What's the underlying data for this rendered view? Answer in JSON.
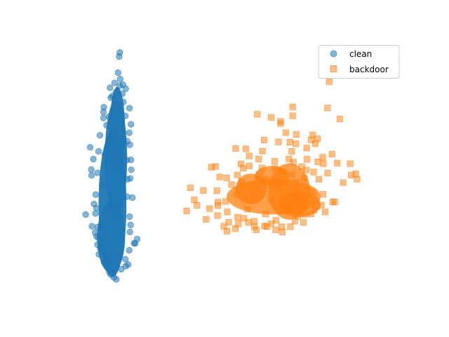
{
  "chart_data": {
    "type": "scatter",
    "title": "",
    "xlabel": "",
    "ylabel": "",
    "axes_visible": false,
    "grid": false,
    "legend": {
      "placement": "top-right"
    },
    "xlim": [
      0,
      1
    ],
    "ylim": [
      0,
      1
    ],
    "series": [
      {
        "name": "clean",
        "marker": "circle",
        "color": "#1f77b4",
        "alpha": 0.55,
        "points": [
          [
            0.183,
            0.954
          ],
          [
            0.181,
            0.938
          ],
          [
            0.178,
            0.875
          ],
          [
            0.184,
            0.85
          ],
          [
            0.168,
            0.835
          ],
          [
            0.192,
            0.828
          ],
          [
            0.155,
            0.816
          ],
          [
            0.2,
            0.812
          ],
          [
            0.172,
            0.799
          ],
          [
            0.19,
            0.792
          ],
          [
            0.162,
            0.784
          ],
          [
            0.211,
            0.736
          ],
          [
            0.137,
            0.74
          ],
          [
            0.136,
            0.698
          ],
          [
            0.215,
            0.673
          ],
          [
            0.21,
            0.64
          ],
          [
            0.212,
            0.593
          ],
          [
            0.098,
            0.583
          ],
          [
            0.122,
            0.567
          ],
          [
            0.107,
            0.537
          ],
          [
            0.101,
            0.496
          ],
          [
            0.119,
            0.483
          ],
          [
            0.102,
            0.473
          ],
          [
            0.203,
            0.533
          ],
          [
            0.213,
            0.461
          ],
          [
            0.204,
            0.39
          ],
          [
            0.085,
            0.32
          ],
          [
            0.103,
            0.274
          ],
          [
            0.112,
            0.25
          ],
          [
            0.116,
            0.234
          ],
          [
            0.227,
            0.207
          ],
          [
            0.233,
            0.224
          ],
          [
            0.224,
            0.208
          ],
          [
            0.119,
            0.202
          ],
          [
            0.123,
            0.164
          ],
          [
            0.14,
            0.148
          ],
          [
            0.138,
            0.133
          ],
          [
            0.2,
            0.118
          ],
          [
            0.207,
            0.124
          ],
          [
            0.187,
            0.106
          ],
          [
            0.157,
            0.085
          ],
          [
            0.16,
            0.098
          ],
          [
            0.166,
            0.074
          ],
          [
            0.173,
            0.066
          ],
          [
            0.153,
            0.095
          ],
          [
            0.145,
            0.128
          ],
          [
            0.199,
            0.145
          ],
          [
            0.21,
            0.18
          ],
          [
            0.127,
            0.187
          ],
          [
            0.109,
            0.361
          ],
          [
            0.113,
            0.324
          ],
          [
            0.214,
            0.279
          ],
          [
            0.211,
            0.312
          ],
          [
            0.114,
            0.398
          ],
          [
            0.216,
            0.495
          ],
          [
            0.215,
            0.534
          ],
          [
            0.136,
            0.721
          ],
          [
            0.199,
            0.706
          ],
          [
            0.145,
            0.669
          ],
          [
            0.157,
            0.777
          ],
          [
            0.193,
            0.76
          ],
          [
            0.183,
            0.824
          ],
          [
            0.152,
            0.703
          ],
          [
            0.204,
            0.607
          ],
          [
            0.126,
            0.63
          ],
          [
            0.133,
            0.437
          ],
          [
            0.219,
            0.386
          ],
          [
            0.119,
            0.271
          ],
          [
            0.212,
            0.252
          ],
          [
            0.122,
            0.229
          ],
          [
            0.134,
            0.27
          ],
          [
            0.14,
            0.555
          ],
          [
            0.205,
            0.458
          ],
          [
            0.116,
            0.345
          ]
        ],
        "core": [
          {
            "cx": 0.162,
            "cy": 0.36,
            "rx": 0.04,
            "ry": 0.285
          },
          {
            "cx": 0.172,
            "cy": 0.54,
            "rx": 0.032,
            "ry": 0.23
          },
          {
            "cx": 0.176,
            "cy": 0.65,
            "rx": 0.022,
            "ry": 0.17
          },
          {
            "cx": 0.158,
            "cy": 0.23,
            "rx": 0.04,
            "ry": 0.14
          }
        ]
      },
      {
        "name": "backdoor",
        "marker": "square",
        "color": "#ff7f0e",
        "alpha": 0.5,
        "points": [
          [
            0.785,
            0.84
          ],
          [
            0.68,
            0.741
          ],
          [
            0.78,
            0.737
          ],
          [
            0.578,
            0.712
          ],
          [
            0.68,
            0.706
          ],
          [
            0.618,
            0.7
          ],
          [
            0.815,
            0.694
          ],
          [
            0.645,
            0.684
          ],
          [
            0.645,
            0.676
          ],
          [
            0.66,
            0.64
          ],
          [
            0.69,
            0.633
          ],
          [
            0.737,
            0.631
          ],
          [
            0.751,
            0.616
          ],
          [
            0.733,
            0.612
          ],
          [
            0.598,
            0.611
          ],
          [
            0.639,
            0.604
          ],
          [
            0.672,
            0.603
          ],
          [
            0.689,
            0.597
          ],
          [
            0.745,
            0.597
          ],
          [
            0.516,
            0.578
          ],
          [
            0.545,
            0.577
          ],
          [
            0.72,
            0.58
          ],
          [
            0.593,
            0.568
          ],
          [
            0.677,
            0.567
          ],
          [
            0.793,
            0.556
          ],
          [
            0.555,
            0.549
          ],
          [
            0.766,
            0.544
          ],
          [
            0.582,
            0.537
          ],
          [
            0.669,
            0.537
          ],
          [
            0.721,
            0.536
          ],
          [
            0.628,
            0.528
          ],
          [
            0.752,
            0.526
          ],
          [
            0.808,
            0.521
          ],
          [
            0.845,
            0.519
          ],
          [
            0.531,
            0.518
          ],
          [
            0.768,
            0.519
          ],
          [
            0.458,
            0.508
          ],
          [
            0.446,
            0.505
          ],
          [
            0.538,
            0.501
          ],
          [
            0.592,
            0.502
          ],
          [
            0.74,
            0.486
          ],
          [
            0.861,
            0.479
          ],
          [
            0.78,
            0.482
          ],
          [
            0.521,
            0.475
          ],
          [
            0.848,
            0.474
          ],
          [
            0.755,
            0.458
          ],
          [
            0.47,
            0.467
          ],
          [
            0.49,
            0.463
          ],
          [
            0.865,
            0.458
          ],
          [
            0.504,
            0.437
          ],
          [
            0.825,
            0.445
          ],
          [
            0.386,
            0.424
          ],
          [
            0.423,
            0.414
          ],
          [
            0.462,
            0.413
          ],
          [
            0.736,
            0.41
          ],
          [
            0.767,
            0.399
          ],
          [
            0.397,
            0.378
          ],
          [
            0.465,
            0.368
          ],
          [
            0.487,
            0.371
          ],
          [
            0.801,
            0.369
          ],
          [
            0.795,
            0.369
          ],
          [
            0.405,
            0.356
          ],
          [
            0.465,
            0.355
          ],
          [
            0.441,
            0.343
          ],
          [
            0.762,
            0.357
          ],
          [
            0.375,
            0.334
          ],
          [
            0.773,
            0.33
          ],
          [
            0.464,
            0.316
          ],
          [
            0.522,
            0.309
          ],
          [
            0.54,
            0.305
          ],
          [
            0.694,
            0.313
          ],
          [
            0.714,
            0.321
          ],
          [
            0.733,
            0.322
          ],
          [
            0.496,
            0.29
          ],
          [
            0.553,
            0.289
          ],
          [
            0.686,
            0.294
          ],
          [
            0.711,
            0.289
          ],
          [
            0.482,
            0.274
          ],
          [
            0.57,
            0.273
          ],
          [
            0.606,
            0.273
          ],
          [
            0.648,
            0.272
          ],
          [
            0.673,
            0.272
          ],
          [
            0.575,
            0.26
          ],
          [
            0.65,
            0.252
          ],
          [
            0.491,
            0.255
          ],
          [
            0.524,
            0.283
          ],
          [
            0.618,
            0.284
          ],
          [
            0.569,
            0.293
          ],
          [
            0.632,
            0.297
          ],
          [
            0.741,
            0.338
          ],
          [
            0.748,
            0.352
          ],
          [
            0.431,
            0.301
          ],
          [
            0.602,
            0.322
          ],
          [
            0.55,
            0.341
          ],
          [
            0.661,
            0.349
          ],
          [
            0.617,
            0.377
          ],
          [
            0.706,
            0.38
          ],
          [
            0.688,
            0.404
          ],
          [
            0.52,
            0.4
          ],
          [
            0.568,
            0.42
          ],
          [
            0.643,
            0.431
          ],
          [
            0.689,
            0.446
          ],
          [
            0.533,
            0.449
          ],
          [
            0.6,
            0.458
          ],
          [
            0.713,
            0.462
          ],
          [
            0.585,
            0.475
          ],
          [
            0.652,
            0.489
          ],
          [
            0.706,
            0.507
          ],
          [
            0.563,
            0.388
          ],
          [
            0.492,
            0.33
          ],
          [
            0.713,
            0.348
          ],
          [
            0.658,
            0.37
          ],
          [
            0.631,
            0.26
          ],
          [
            0.599,
            0.275
          ],
          [
            0.515,
            0.265
          ],
          [
            0.678,
            0.476
          ],
          [
            0.719,
            0.494
          ],
          [
            0.629,
            0.5
          ],
          [
            0.555,
            0.51
          ],
          [
            0.682,
            0.525
          ]
        ],
        "core": [
          {
            "cx": 0.625,
            "cy": 0.39,
            "rx": 0.135,
            "ry": 0.07
          },
          {
            "cx": 0.67,
            "cy": 0.41,
            "rx": 0.06,
            "ry": 0.11
          },
          {
            "cx": 0.56,
            "cy": 0.42,
            "rx": 0.045,
            "ry": 0.06
          },
          {
            "cx": 0.7,
            "cy": 0.36,
            "rx": 0.06,
            "ry": 0.05
          },
          {
            "cx": 0.62,
            "cy": 0.47,
            "rx": 0.05,
            "ry": 0.04
          }
        ]
      }
    ]
  }
}
